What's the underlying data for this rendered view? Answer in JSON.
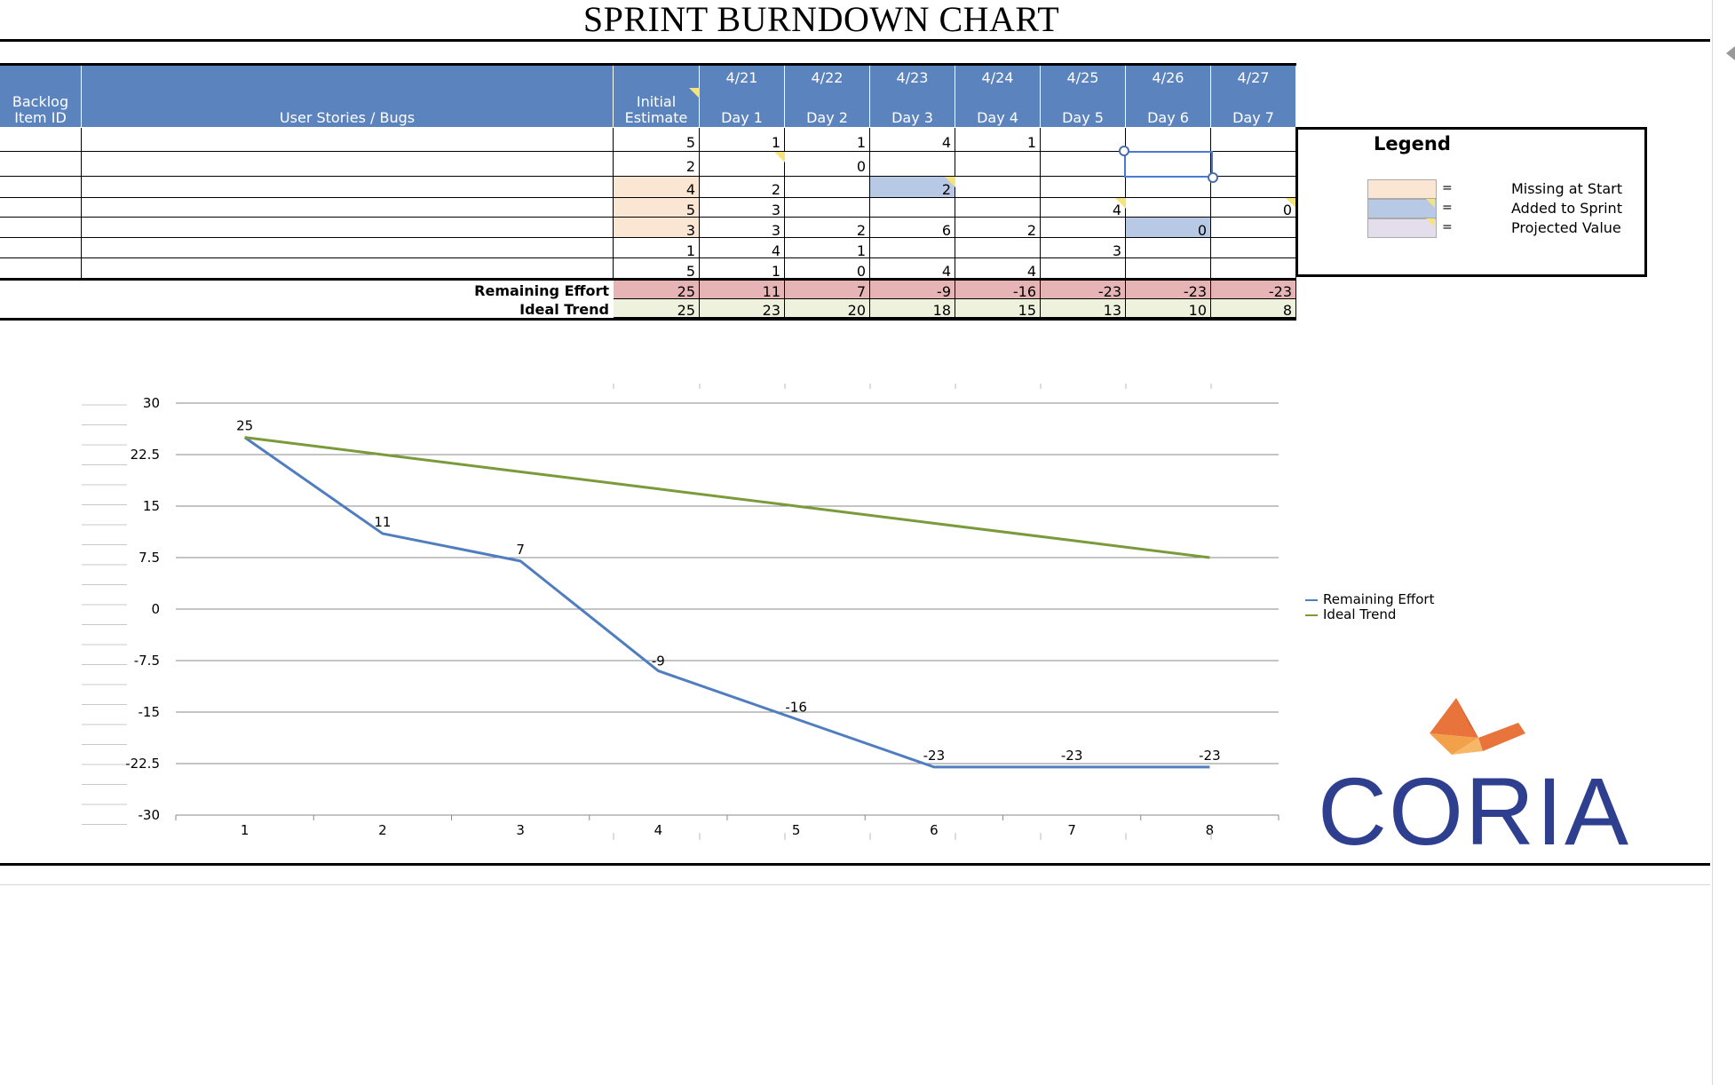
{
  "title": "SPRINT BURNDOWN CHART",
  "header": {
    "backlog": [
      "Backlog",
      "Item ID"
    ],
    "stories": "User Stories / Bugs",
    "estimate": [
      "Initial",
      "Estimate"
    ],
    "dates": [
      "4/21",
      "4/22",
      "4/23",
      "4/24",
      "4/25",
      "4/26",
      "4/27"
    ],
    "days": [
      "Day 1",
      "Day 2",
      "Day 3",
      "Day 4",
      "Day 5",
      "Day 6",
      "Day 7"
    ]
  },
  "rows": [
    {
      "estimate": "5",
      "days": [
        "1",
        "1",
        "4",
        "1",
        "",
        "",
        ""
      ]
    },
    {
      "estimate": "2",
      "days": [
        "",
        "0",
        "",
        "",
        "",
        "",
        ""
      ]
    },
    {
      "estimate": "4",
      "days": [
        "2",
        "",
        "2",
        "",
        "",
        "",
        ""
      ]
    },
    {
      "estimate": "5",
      "days": [
        "3",
        "",
        "",
        "",
        "4",
        "",
        "0"
      ]
    },
    {
      "estimate": "3",
      "days": [
        "3",
        "2",
        "6",
        "2",
        "",
        "0",
        ""
      ]
    },
    {
      "estimate": "1",
      "days": [
        "4",
        "1",
        "",
        "",
        "3",
        "",
        ""
      ]
    },
    {
      "estimate": "5",
      "days": [
        "1",
        "0",
        "4",
        "4",
        "",
        "",
        ""
      ]
    }
  ],
  "summary": {
    "remaining_label": "Remaining Effort",
    "remaining": [
      "25",
      "11",
      "7",
      "-9",
      "-16",
      "-23",
      "-23",
      "-23"
    ],
    "ideal_label": "Ideal Trend",
    "ideal": [
      "25",
      "23",
      "20",
      "18",
      "15",
      "13",
      "10",
      "8"
    ]
  },
  "legend": {
    "title": "Legend",
    "eq": "=",
    "items": [
      {
        "label": "Missing at Start",
        "color": "#fbe6d4"
      },
      {
        "label": "Added to Sprint",
        "color": "#b8c9e6"
      },
      {
        "label": "Projected Value",
        "color": "#e3ddec"
      }
    ]
  },
  "chart_data": {
    "type": "line",
    "x": [
      1,
      2,
      3,
      4,
      5,
      6,
      7,
      8
    ],
    "ylim": [
      -30,
      30
    ],
    "yticks": [
      "30",
      "22.5",
      "15",
      "7.5",
      "0",
      "-7.5",
      "-15",
      "-22.5",
      "-30"
    ],
    "series": [
      {
        "name": "Remaining Effort",
        "color": "#4f7dbf",
        "values": [
          25,
          11,
          7,
          -9,
          -16,
          -23,
          -23,
          -23
        ]
      },
      {
        "name": "Ideal Trend",
        "color": "#7b9a3c",
        "values": [
          25,
          22.5,
          20,
          17.5,
          15,
          12.5,
          10,
          7.5
        ]
      }
    ],
    "labels": [
      "25",
      "11",
      "7",
      "-9",
      "-16",
      "-23",
      "-23",
      "-23"
    ]
  },
  "logo": {
    "text": "CORIA",
    "color": "#2e3f8f"
  }
}
